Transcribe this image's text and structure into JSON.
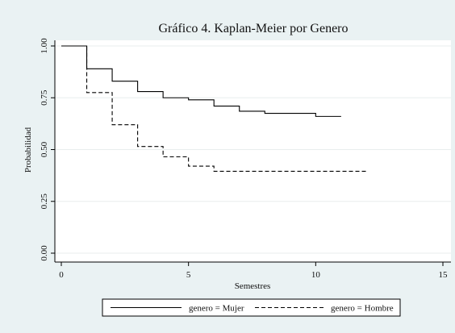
{
  "chart_data": {
    "type": "line",
    "title": "Gráfico 4. Kaplan-Meier por Genero",
    "xlabel": "Semestres",
    "ylabel": "Probabilidad",
    "xlim": [
      0,
      15
    ],
    "ylim": [
      0,
      1
    ],
    "xticks": [
      0,
      5,
      10,
      15
    ],
    "xtick_labels": [
      "0",
      "5",
      "10",
      "15"
    ],
    "yticks": [
      0,
      0.25,
      0.5,
      0.75,
      1
    ],
    "ytick_labels": [
      "0.00",
      "0.25",
      "0.50",
      "0.75",
      "1.00"
    ],
    "grid": true,
    "legend_position": "bottom",
    "step": true,
    "series": [
      {
        "name": "genero = Mujer",
        "style": "solid",
        "color": "#000000",
        "x": [
          0,
          1,
          2,
          3,
          4,
          5,
          6,
          7,
          8,
          9,
          10,
          11
        ],
        "y": [
          1.0,
          0.89,
          0.83,
          0.78,
          0.75,
          0.74,
          0.71,
          0.685,
          0.675,
          0.675,
          0.66,
          0.66
        ]
      },
      {
        "name": "genero = Hombre",
        "style": "dashed",
        "color": "#000000",
        "x": [
          0,
          1,
          2,
          3,
          4,
          5,
          6,
          7,
          8,
          9,
          10,
          11,
          12
        ],
        "y": [
          1.0,
          0.775,
          0.62,
          0.515,
          0.465,
          0.42,
          0.395,
          0.395,
          0.395,
          0.395,
          0.395,
          0.395,
          0.395
        ]
      }
    ]
  },
  "colors": {
    "background": "#eaf2f3",
    "plot_background": "#ffffff",
    "gridline": "#e8eeee"
  }
}
